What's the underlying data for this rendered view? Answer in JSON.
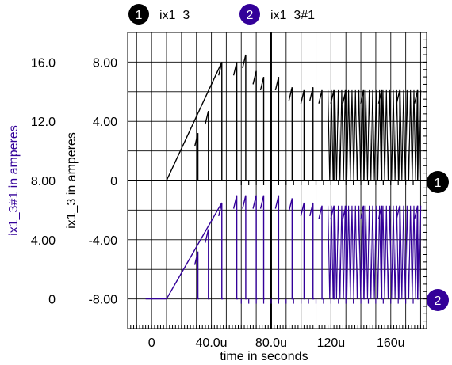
{
  "chart_data": {
    "type": "line",
    "xlabel": "time in seconds",
    "xticks": [
      "0",
      "40.0u",
      "80.0u",
      "120u",
      "160u"
    ],
    "xlim_us": [
      -16,
      184
    ],
    "series": [
      {
        "name": "ix1_3",
        "marker": "1",
        "color": "#000000",
        "ylabel": "ix1_3  in amperes",
        "yticks": [
          "-8.00",
          "-4.00",
          "0",
          "4.00",
          "8.00"
        ],
        "ylim": [
          -10,
          10
        ],
        "baseline": 0,
        "ramp": [
          [
            10,
            0
          ],
          [
            47,
            8
          ]
        ],
        "spike_peaks": [
          [
            31,
            3.2
          ],
          [
            38,
            4.7
          ],
          [
            47,
            8.0
          ],
          [
            57,
            8.0
          ],
          [
            63,
            8.5
          ],
          [
            70,
            7.4
          ],
          [
            75,
            7.0
          ],
          [
            85,
            7.0
          ],
          [
            94,
            6.3
          ],
          [
            102,
            6.1
          ],
          [
            108,
            6.3
          ],
          [
            114,
            6.1
          ],
          [
            122,
            6.1
          ],
          [
            130,
            6.1
          ],
          [
            142,
            6.1
          ],
          [
            154,
            6.1
          ],
          [
            166,
            6.1
          ],
          [
            178,
            6.1
          ]
        ],
        "dense_band": {
          "x_start_us": 118,
          "x_end_us": 180,
          "min": 0,
          "max": 6.1
        }
      },
      {
        "name": "ix1_3#1",
        "marker": "2",
        "color": "#330099",
        "ylabel": "ix1_3#1   in amperes",
        "yticks": [
          "0",
          "4.00",
          "8.00",
          "12.0",
          "16.0"
        ],
        "ylim": [
          -2,
          18
        ],
        "baseline": 0,
        "ramp": [
          [
            10,
            0
          ],
          [
            47,
            6.5
          ]
        ],
        "spike_peaks": [
          [
            31,
            3.2
          ],
          [
            38,
            4.7
          ],
          [
            47,
            6.5
          ],
          [
            57,
            7.0
          ],
          [
            63,
            7.0
          ],
          [
            70,
            7.0
          ],
          [
            75,
            7.0
          ],
          [
            85,
            7.0
          ],
          [
            94,
            6.8
          ],
          [
            102,
            6.5
          ],
          [
            108,
            6.5
          ],
          [
            114,
            6.3
          ],
          [
            122,
            6.3
          ],
          [
            130,
            6.3
          ],
          [
            142,
            6.3
          ],
          [
            154,
            6.3
          ],
          [
            166,
            6.3
          ],
          [
            178,
            6.3
          ]
        ],
        "dense_band": {
          "x_start_us": 118,
          "x_end_us": 180,
          "min": 0,
          "max": 6.3
        }
      }
    ]
  }
}
